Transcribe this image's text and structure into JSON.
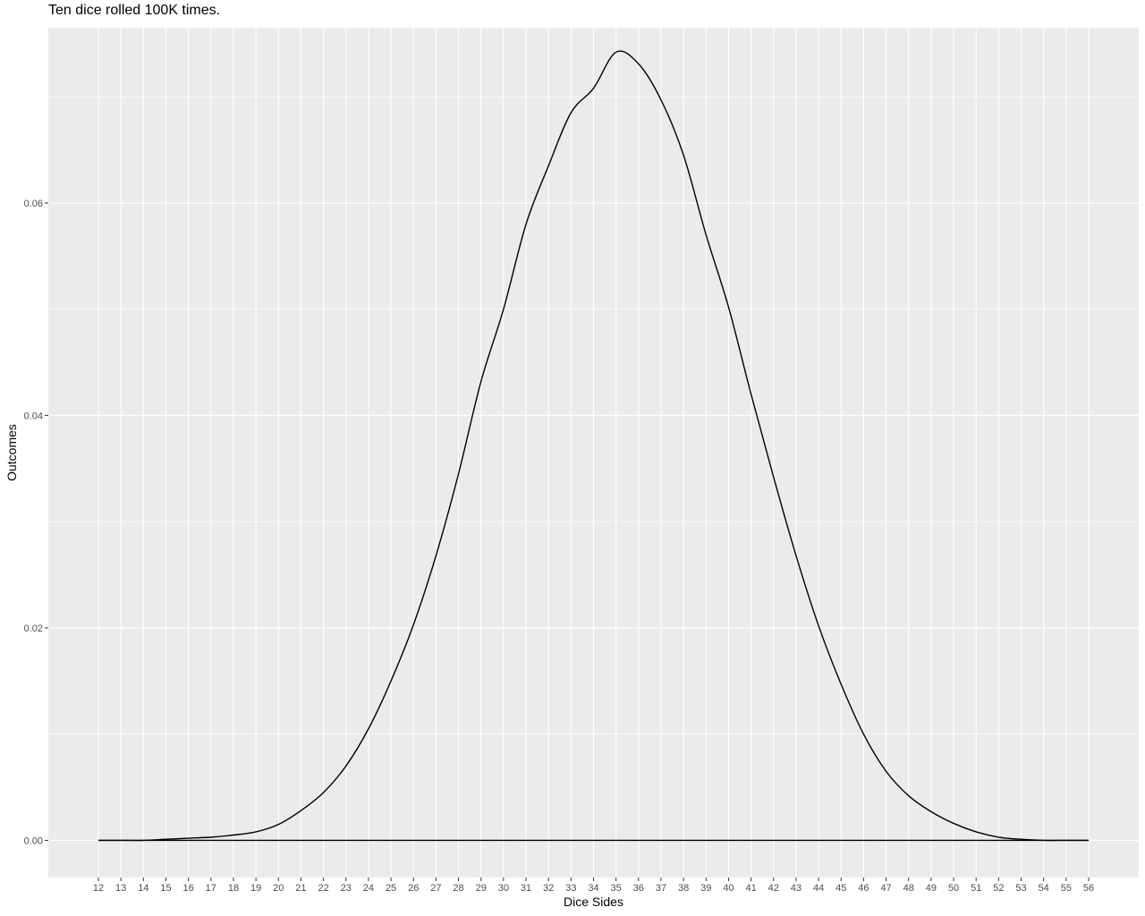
{
  "chart_data": {
    "type": "line",
    "title": "Ten dice rolled 100K times.",
    "xlabel": "Dice Sides",
    "ylabel": "Outcomes",
    "xlim": [
      12,
      56
    ],
    "ylim": [
      -0.0035,
      0.0765
    ],
    "x_ticks": [
      "12",
      "13",
      "14",
      "15",
      "16",
      "17",
      "18",
      "19",
      "20",
      "21",
      "22",
      "23",
      "24",
      "25",
      "26",
      "27",
      "28",
      "29",
      "30",
      "31",
      "32",
      "33",
      "34",
      "35",
      "36",
      "37",
      "38",
      "39",
      "40",
      "41",
      "42",
      "43",
      "44",
      "45",
      "46",
      "47",
      "48",
      "49",
      "50",
      "51",
      "52",
      "53",
      "54",
      "55",
      "56"
    ],
    "y_ticks": [
      "0.00",
      "0.02",
      "0.04",
      "0.06"
    ],
    "grid": true,
    "background": "#ebebeb",
    "grid_color": "#ffffff",
    "line_color": "#000000",
    "series": [
      {
        "x": [
          12,
          13,
          14,
          15,
          16,
          17,
          18,
          19,
          20,
          21,
          22,
          23,
          24,
          25,
          26,
          27,
          28,
          29,
          30,
          31,
          32,
          33,
          34,
          35,
          36,
          37,
          38,
          39,
          40,
          41,
          42,
          43,
          44,
          45,
          46,
          47,
          48,
          49,
          50,
          51,
          52,
          53,
          54,
          55,
          56
        ],
        "values": [
          0.0,
          0.0,
          0.0,
          0.0001,
          0.0002,
          0.0003,
          0.0005,
          0.0008,
          0.0015,
          0.0028,
          0.0045,
          0.007,
          0.0105,
          0.015,
          0.0203,
          0.0268,
          0.0345,
          0.0432,
          0.05,
          0.058,
          0.0635,
          0.0685,
          0.0708,
          0.0742,
          0.0731,
          0.0697,
          0.0645,
          0.057,
          0.0502,
          0.042,
          0.0342,
          0.0268,
          0.0202,
          0.0147,
          0.01,
          0.0065,
          0.0042,
          0.0027,
          0.0016,
          0.0008,
          0.0003,
          0.0001,
          0.0,
          0.0,
          0.0
        ]
      }
    ]
  }
}
